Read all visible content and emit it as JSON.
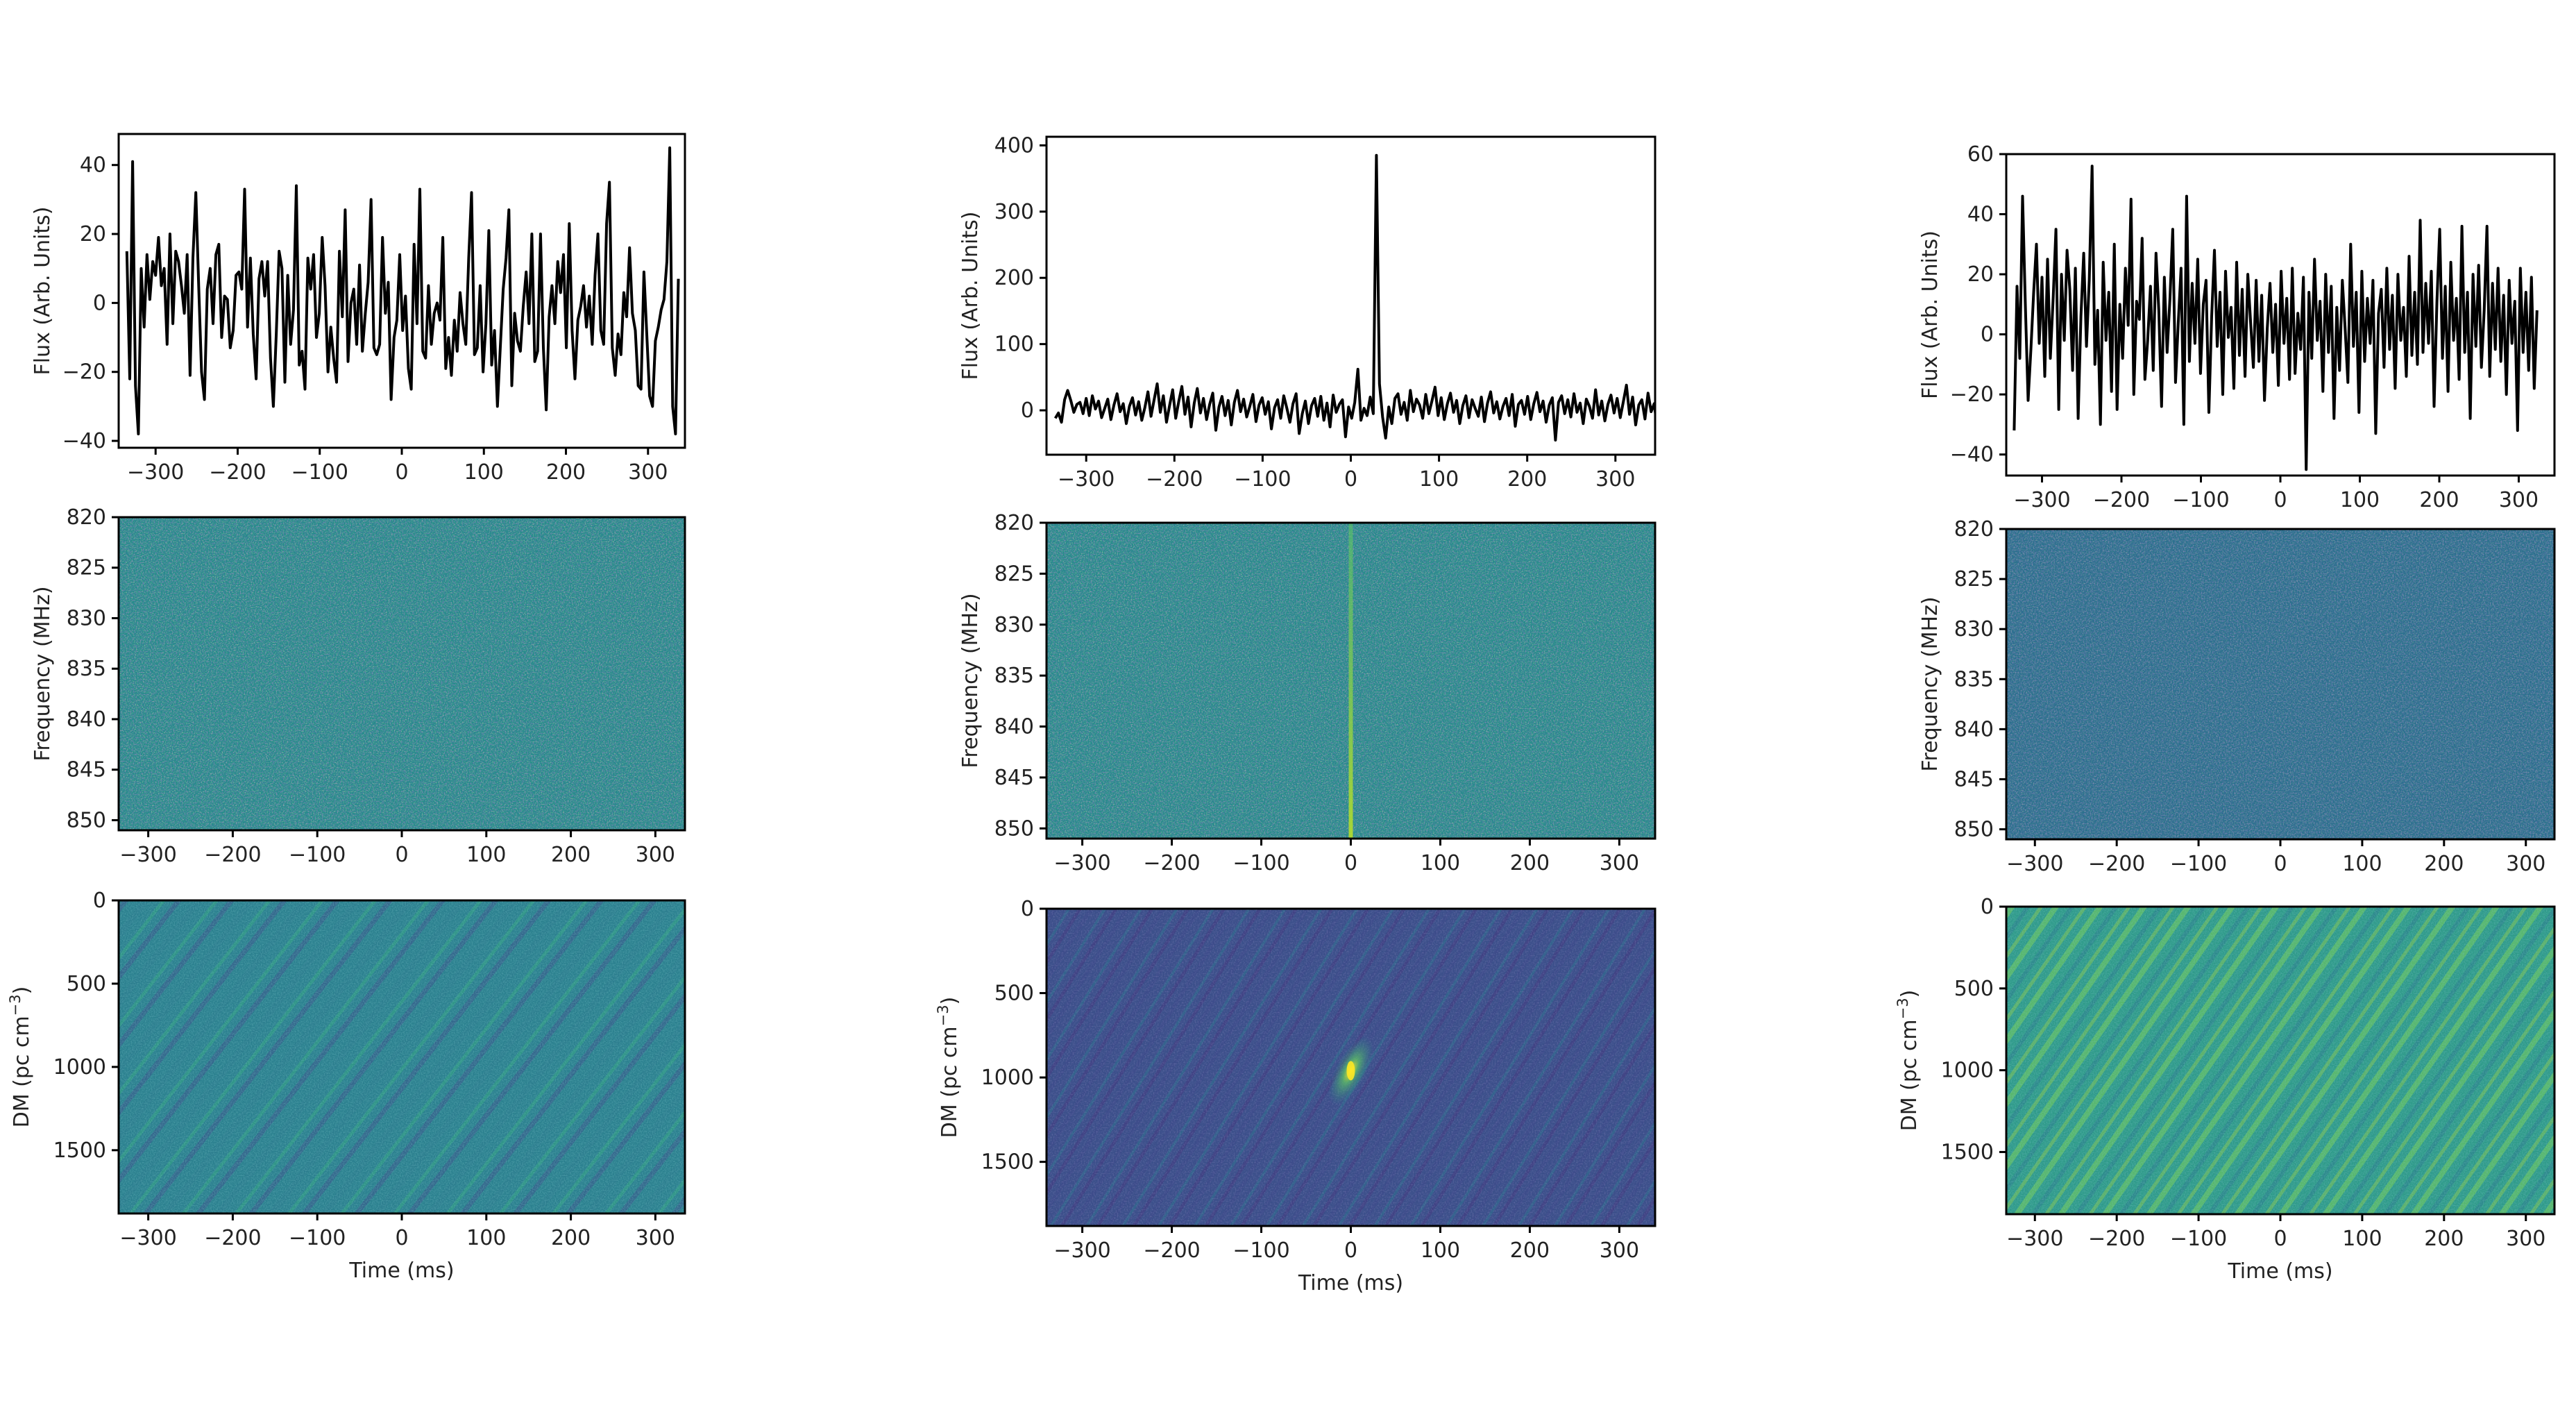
{
  "chart_data": [
    {
      "type": "line",
      "panel": "flux",
      "column": "left",
      "xlabel": "",
      "ylabel": "Flux (Arb. Units)",
      "xlim": [
        -345,
        345
      ],
      "ylim": [
        -42,
        49
      ],
      "xticks": [
        -300,
        -200,
        -100,
        0,
        100,
        200,
        300
      ],
      "yticks": [
        -40,
        -20,
        0,
        20,
        40
      ],
      "series": [
        {
          "x_start": -335,
          "x_step": 3.5,
          "values": [
            15,
            -22,
            41,
            -24,
            -38,
            10,
            -7,
            14,
            1,
            12,
            8,
            19,
            5,
            10,
            -12,
            20,
            -6,
            15,
            12,
            5,
            -3,
            14,
            -21,
            13,
            32,
            5,
            -20,
            -28,
            4,
            10,
            -6,
            14,
            17,
            -10,
            2,
            1,
            -13,
            -8,
            8,
            9,
            4,
            33,
            -7,
            13,
            -9,
            -22,
            7,
            12,
            2,
            12,
            -16,
            -30,
            -9,
            15,
            10,
            -23,
            8,
            -12,
            -2,
            34,
            -18,
            -14,
            -25,
            13,
            4,
            14,
            -10,
            -3,
            19,
            5,
            -20,
            -7,
            -16,
            -23,
            15,
            -4,
            27,
            -17,
            0,
            4,
            -12,
            11,
            -14,
            -3,
            6,
            30,
            -13,
            -15,
            -12,
            19,
            -3,
            6,
            -28,
            -10,
            -5,
            14,
            -8,
            2,
            -19,
            -25,
            17,
            -6,
            33,
            -14,
            -16,
            5,
            -12,
            -3,
            0,
            -5,
            19,
            -19,
            -10,
            -21,
            -5,
            -14,
            3,
            -6,
            -12,
            13,
            32,
            -15,
            -13,
            5,
            -20,
            -6,
            21,
            -18,
            -8,
            -30,
            -13,
            4,
            13,
            27,
            -24,
            -3,
            -11,
            -14,
            -1,
            9,
            -6,
            20,
            -17,
            -14,
            20,
            -13,
            -31,
            -4,
            5,
            -6,
            12,
            3,
            14,
            -13,
            23,
            -8,
            -22,
            -5,
            -1,
            5,
            -7,
            2,
            -12,
            8,
            20,
            -8,
            -12,
            23,
            35,
            -13,
            -21,
            -9,
            -15,
            3,
            -4,
            16,
            -3,
            -8,
            -24,
            -25,
            9,
            -9,
            -27,
            -30,
            -11,
            -7,
            -2,
            1,
            12,
            45,
            -30,
            -38,
            7
          ]
        }
      ],
      "title": ""
    },
    {
      "type": "line",
      "panel": "flux",
      "column": "middle",
      "xlabel": "",
      "ylabel": "Flux (Arb. Units)",
      "xlim": [
        -345,
        345
      ],
      "ylim": [
        -67,
        413
      ],
      "xticks": [
        -300,
        -200,
        -100,
        0,
        100,
        200,
        300
      ],
      "yticks": [
        0,
        100,
        200,
        300,
        400
      ],
      "series": [
        {
          "x_start": -335,
          "x_step": 3.5,
          "values": [
            -12,
            -4,
            -18,
            16,
            30,
            15,
            -3,
            9,
            12,
            -5,
            18,
            -8,
            22,
            2,
            14,
            -11,
            3,
            17,
            -14,
            8,
            25,
            -2,
            10,
            -20,
            6,
            19,
            -7,
            13,
            -15,
            4,
            28,
            -9,
            16,
            40,
            -3,
            22,
            -18,
            7,
            31,
            -12,
            14,
            36,
            -6,
            20,
            -25,
            11,
            33,
            -4,
            18,
            -14,
            9,
            26,
            -30,
            5,
            21,
            -8,
            15,
            -22,
            12,
            30,
            -2,
            17,
            -10,
            6,
            24,
            -17,
            8,
            19,
            -6,
            13,
            -28,
            4,
            16,
            -12,
            22,
            3,
            -18,
            10,
            25,
            -35,
            -5,
            14,
            -20,
            7,
            18,
            -9,
            21,
            -15,
            11,
            -25,
            23,
            -3,
            9,
            16,
            -40,
            5,
            -12,
            12,
            62,
            -15,
            3,
            -8,
            20,
            -5,
            385,
            40,
            -10,
            -42,
            5,
            -20,
            18,
            25,
            -6,
            12,
            -15,
            30,
            -2,
            17,
            8,
            -12,
            24,
            -5,
            14,
            35,
            -8,
            19,
            -14,
            10,
            26,
            -3,
            15,
            -20,
            7,
            22,
            -11,
            16,
            3,
            -9,
            20,
            -17,
            11,
            28,
            -4,
            13,
            -13,
            6,
            18,
            -8,
            24,
            -24,
            9,
            15,
            -6,
            21,
            -14,
            10,
            27,
            -2,
            14,
            -18,
            8,
            19,
            -45,
            12,
            22,
            -5,
            16,
            -10,
            25,
            -3,
            11,
            -20,
            17,
            6,
            -12,
            31,
            -7,
            14,
            -16,
            9,
            23,
            -4,
            18,
            -11,
            13,
            38,
            -6,
            20,
            -22,
            8,
            16,
            -13,
            26,
            -2,
            10,
            -28
          ]
        }
      ],
      "title": ""
    },
    {
      "type": "line",
      "panel": "flux",
      "column": "right",
      "xlabel": "",
      "ylabel": "Flux (Arb. Units)",
      "xlim": [
        -345,
        345
      ],
      "ylim": [
        -47,
        60
      ],
      "xticks": [
        -300,
        -200,
        -100,
        0,
        100,
        200,
        300
      ],
      "yticks": [
        -40,
        -20,
        0,
        20,
        40,
        60
      ],
      "series": [
        {
          "x_start": -335,
          "x_step": 3.5,
          "values": [
            -32,
            16,
            -8,
            46,
            10,
            -22,
            -5,
            14,
            30,
            -3,
            19,
            -14,
            25,
            -8,
            12,
            35,
            -25,
            20,
            -2,
            28,
            15,
            -12,
            22,
            -28,
            6,
            27,
            -4,
            18,
            56,
            -10,
            8,
            -30,
            24,
            -2,
            14,
            -19,
            30,
            -25,
            10,
            -8,
            22,
            3,
            45,
            -20,
            11,
            5,
            32,
            -15,
            -2,
            16,
            -12,
            27,
            8,
            -24,
            19,
            -6,
            12,
            35,
            -16,
            4,
            22,
            -30,
            46,
            -9,
            17,
            -3,
            25,
            -13,
            10,
            18,
            -26,
            6,
            28,
            -4,
            14,
            -20,
            21,
            -1,
            9,
            -18,
            24,
            -7,
            15,
            -14,
            20,
            4,
            -11,
            18,
            -9,
            13,
            -22,
            2,
            17,
            -6,
            10,
            -17,
            21,
            -3,
            12,
            -15,
            22,
            -13,
            7,
            -5,
            19,
            -45,
            14,
            -8,
            25,
            -2,
            11,
            -19,
            20,
            -6,
            16,
            -28,
            9,
            -12,
            18,
            2,
            -16,
            30,
            -4,
            14,
            -26,
            21,
            -9,
            12,
            -3,
            18,
            -33,
            7,
            15,
            -11,
            22,
            -5,
            13,
            -18,
            20,
            -2,
            9,
            -14,
            26,
            -7,
            14,
            -10,
            38,
            -6,
            17,
            -3,
            21,
            -24,
            11,
            35,
            -8,
            16,
            -19,
            24,
            -2,
            12,
            -15,
            36,
            -6,
            14,
            -28,
            20,
            -4,
            23,
            -11,
            8,
            36,
            -14,
            17,
            -5,
            22,
            -9,
            13,
            -20,
            18,
            -3,
            11,
            -32,
            22,
            -6,
            14,
            -12,
            19,
            -18,
            8
          ]
        }
      ],
      "title": ""
    },
    {
      "type": "heatmap",
      "panel": "dynamic-spectrum",
      "column": "left",
      "xlabel": "",
      "ylabel": "Frequency (MHz)",
      "xlim": [
        -335,
        335
      ],
      "ylim": [
        820,
        851
      ],
      "xticks": [
        -300,
        -200,
        -100,
        0,
        100,
        200,
        300
      ],
      "yticks": [
        820,
        825,
        830,
        835,
        840,
        845,
        850
      ],
      "colormap": "viridis",
      "pattern": "noise",
      "title": ""
    },
    {
      "type": "heatmap",
      "panel": "dynamic-spectrum",
      "column": "middle",
      "xlabel": "",
      "ylabel": "Frequency (MHz)",
      "xlim": [
        -340,
        340
      ],
      "ylim": [
        820,
        851
      ],
      "xticks": [
        -300,
        -200,
        -100,
        0,
        100,
        200,
        300
      ],
      "yticks": [
        820,
        825,
        830,
        835,
        840,
        845,
        850
      ],
      "colormap": "viridis",
      "pattern": "noise-with-pulse-at-0",
      "title": ""
    },
    {
      "type": "heatmap",
      "panel": "dynamic-spectrum",
      "column": "right",
      "xlabel": "",
      "ylabel": "Frequency (MHz)",
      "xlim": [
        -335,
        335
      ],
      "ylim": [
        820,
        851
      ],
      "xticks": [
        -300,
        -200,
        -100,
        0,
        100,
        200,
        300
      ],
      "yticks": [
        820,
        825,
        830,
        835,
        840,
        845,
        850
      ],
      "colormap": "viridis",
      "pattern": "noise",
      "title": ""
    },
    {
      "type": "heatmap",
      "panel": "dm-time",
      "column": "left",
      "xlabel": "Time (ms)",
      "ylabel": "DM (pc cm",
      "ylabel_sup": "−3",
      "ylabel_end": ")",
      "xlim": [
        -335,
        335
      ],
      "ylim": [
        0,
        1880
      ],
      "xticks": [
        -300,
        -200,
        -100,
        0,
        100,
        200,
        300
      ],
      "yticks": [
        0,
        500,
        1000,
        1500
      ],
      "colormap": "viridis",
      "pattern": "diagonal-streaks",
      "title": ""
    },
    {
      "type": "heatmap",
      "panel": "dm-time",
      "column": "middle",
      "xlabel": "Time (ms)",
      "ylabel": "DM (pc cm",
      "ylabel_sup": "−3",
      "ylabel_end": ")",
      "xlim": [
        -340,
        340
      ],
      "ylim": [
        0,
        1880
      ],
      "xticks": [
        -300,
        -200,
        -100,
        0,
        100,
        200,
        300
      ],
      "yticks": [
        0,
        500,
        1000,
        1500
      ],
      "colormap": "viridis",
      "pattern": "diagonal-streaks-with-bowtie-at-0-dm-960",
      "title": ""
    },
    {
      "type": "heatmap",
      "panel": "dm-time",
      "column": "right",
      "xlabel": "Time (ms)",
      "ylabel": "DM (pc cm",
      "ylabel_sup": "−3",
      "ylabel_end": ")",
      "xlim": [
        -335,
        335
      ],
      "ylim": [
        0,
        1880
      ],
      "xticks": [
        -300,
        -200,
        -100,
        0,
        100,
        200,
        300
      ],
      "yticks": [
        0,
        500,
        1000,
        1500
      ],
      "colormap": "viridis",
      "pattern": "diagonal-streaks-bright",
      "title": ""
    }
  ],
  "colors": {
    "line": "#000000",
    "viridis_dark": "#3b528b",
    "viridis_mid": "#21918c",
    "viridis_bright": "#5ec962",
    "viridis_yellow": "#fde725"
  }
}
